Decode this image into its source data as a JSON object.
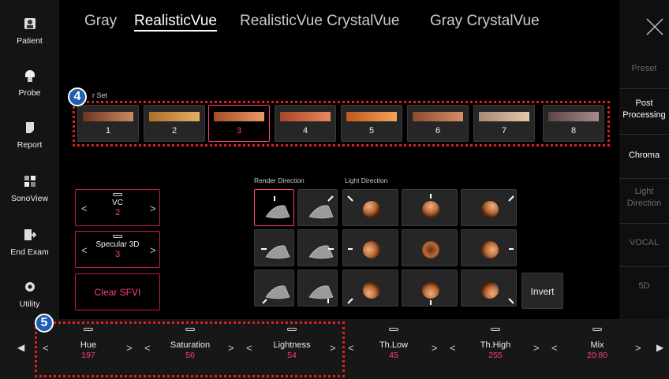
{
  "sidebar": [
    "Patient",
    "Probe",
    "Report",
    "SonoView",
    "End Exam",
    "Utility"
  ],
  "tabs": [
    {
      "label": "Gray"
    },
    {
      "label": "RealisticVue",
      "selected": true
    },
    {
      "label": "RealisticVue CrystalVue"
    },
    {
      "label": "Gray CrystalVue"
    }
  ],
  "right_menu": [
    {
      "label": "Preset",
      "active": false
    },
    {
      "label": "Post Processing",
      "active": true
    },
    {
      "label": "Chroma",
      "active": true
    },
    {
      "label": "Light Direction",
      "active": false
    },
    {
      "label": "VOCAL",
      "active": false
    },
    {
      "label": "5D",
      "active": false
    }
  ],
  "color_set": {
    "badge": 4,
    "label": "r Set",
    "swatches": [
      {
        "label": 1,
        "colors": [
          "#6e3420",
          "#c98a62"
        ]
      },
      {
        "label": 2,
        "colors": [
          "#b0702c",
          "#e2ad66"
        ]
      },
      {
        "label": 3,
        "colors": [
          "#a24c28",
          "#ec9a68"
        ],
        "selected": true
      },
      {
        "label": 4,
        "colors": [
          "#a8442c",
          "#e58a5c"
        ]
      },
      {
        "label": 5,
        "colors": [
          "#c2561c",
          "#f2a45a"
        ]
      },
      {
        "label": 6,
        "colors": [
          "#8e4a2e",
          "#d4906a"
        ]
      },
      {
        "label": 7,
        "colors": [
          "#a88a74",
          "#e6c6a8"
        ]
      },
      {
        "label": 8,
        "colors": [
          "#5e4446",
          "#a88a8c"
        ]
      }
    ]
  },
  "controls": [
    {
      "name": "VC",
      "value": 2
    },
    {
      "name": "Specular 3D",
      "value": 3
    }
  ],
  "clear_button": "Clear SFVI",
  "render_direction": "Render Direction",
  "light_direction": "Light Direction",
  "invert": "Invert",
  "bottom": {
    "badge": 5,
    "params": [
      {
        "name": "Hue",
        "value": 197
      },
      {
        "name": "Saturation",
        "value": 56
      },
      {
        "name": "Lightness",
        "value": 54
      },
      {
        "name": "Th.Low",
        "value": 45
      },
      {
        "name": "Th.High",
        "value": 255
      },
      {
        "name": "Mix",
        "value": "20:80"
      }
    ]
  }
}
